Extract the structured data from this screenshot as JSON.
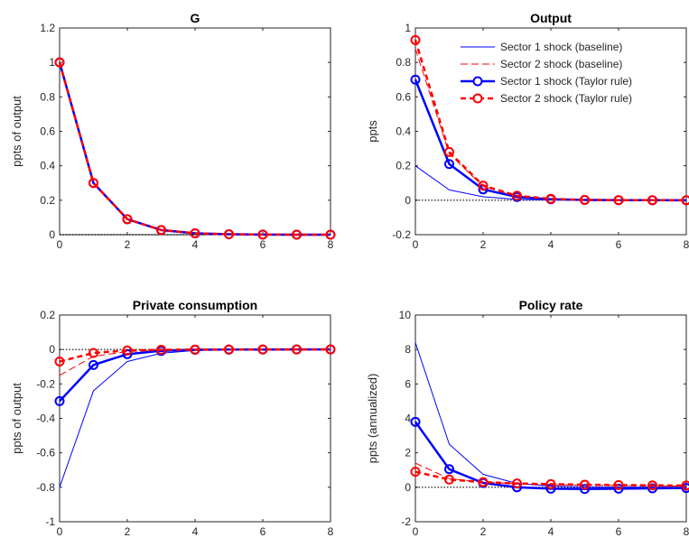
{
  "legend_placement": "top-right",
  "legend_panel": 1,
  "styles": {
    "s1_baseline": {
      "color": "#0000ff",
      "width": 1,
      "dash": "",
      "marker": false
    },
    "s2_baseline": {
      "color": "#ff0000",
      "width": 1,
      "dash": "8,4",
      "marker": false
    },
    "s1_taylor": {
      "color": "#0000ff",
      "width": 2.5,
      "dash": "",
      "marker": true
    },
    "s2_taylor": {
      "color": "#ff0000",
      "width": 2.5,
      "dash": "6,4",
      "marker": true
    }
  },
  "zero_line": {
    "color": "#000000",
    "dash": "1.5,2"
  },
  "chart_data": [
    {
      "type": "line",
      "title": "G",
      "xlabel": "",
      "ylabel": "ppts of output",
      "xlim": [
        0,
        8
      ],
      "ylim": [
        0,
        1.2
      ],
      "xticks": [
        "0",
        "2",
        "4",
        "6",
        "8"
      ],
      "yticks": [
        "0",
        "0.2",
        "0.4",
        "0.6",
        "0.8",
        "1",
        "1.2"
      ],
      "x": [
        0,
        1,
        2,
        3,
        4,
        5,
        6,
        7,
        8
      ],
      "series": [
        {
          "name": "Sector 1 shock (baseline)",
          "style": "s1_baseline",
          "values": [
            1,
            0.3,
            0.09,
            0.027,
            0.0081,
            0.0024,
            0.0007,
            0.0002,
            0.0001
          ]
        },
        {
          "name": "Sector 2 shock (baseline)",
          "style": "s2_baseline",
          "values": [
            1,
            0.3,
            0.09,
            0.027,
            0.0081,
            0.0024,
            0.0007,
            0.0002,
            0.0001
          ]
        },
        {
          "name": "Sector 1 shock (Taylor rule)",
          "style": "s1_taylor",
          "values": [
            1,
            0.3,
            0.09,
            0.027,
            0.0081,
            0.0024,
            0.0007,
            0.0002,
            0.0001
          ]
        },
        {
          "name": "Sector 2 shock (Taylor rule)",
          "style": "s2_taylor",
          "values": [
            1,
            0.3,
            0.09,
            0.027,
            0.0081,
            0.0024,
            0.0007,
            0.0002,
            0.0001
          ]
        }
      ]
    },
    {
      "type": "line",
      "title": "Output",
      "xlabel": "",
      "ylabel": "ppts",
      "xlim": [
        0,
        8
      ],
      "ylim": [
        -0.2,
        1
      ],
      "xticks": [
        "0",
        "2",
        "4",
        "6",
        "8"
      ],
      "yticks": [
        "-0.2",
        "0",
        "0.2",
        "0.4",
        "0.6",
        "0.8",
        "1"
      ],
      "x": [
        0,
        1,
        2,
        3,
        4,
        5,
        6,
        7,
        8
      ],
      "series": [
        {
          "name": "Sector 1 shock (baseline)",
          "style": "s1_baseline",
          "values": [
            0.2,
            0.06,
            0.02,
            0.005,
            0.002,
            0.0005,
            0.0001,
            0,
            0
          ]
        },
        {
          "name": "Sector 2 shock (baseline)",
          "style": "s2_baseline",
          "values": [
            0.88,
            0.27,
            0.08,
            0.025,
            0.007,
            0.002,
            0.0005,
            0.0001,
            0
          ]
        },
        {
          "name": "Sector 1 shock (Taylor rule)",
          "style": "s1_taylor",
          "values": [
            0.7,
            0.21,
            0.063,
            0.019,
            0.006,
            0.002,
            0.0005,
            0.0001,
            0
          ]
        },
        {
          "name": "Sector 2 shock (Taylor rule)",
          "style": "s2_taylor",
          "values": [
            0.93,
            0.28,
            0.085,
            0.026,
            0.008,
            0.002,
            0.0007,
            0.0002,
            0
          ]
        }
      ]
    },
    {
      "type": "line",
      "title": "Private consumption",
      "xlabel": "",
      "ylabel": "ppts of output",
      "xlim": [
        0,
        8
      ],
      "ylim": [
        -1,
        0.2
      ],
      "xticks": [
        "0",
        "2",
        "4",
        "6",
        "8"
      ],
      "yticks": [
        "-1",
        "-0.8",
        "-0.6",
        "-0.4",
        "-0.2",
        "0",
        "0.2"
      ],
      "x": [
        0,
        1,
        2,
        3,
        4,
        5,
        6,
        7,
        8
      ],
      "series": [
        {
          "name": "Sector 1 shock (baseline)",
          "style": "s1_baseline",
          "values": [
            -0.8,
            -0.24,
            -0.07,
            -0.022,
            -0.006,
            -0.002,
            -0.0005,
            -0.0001,
            0
          ]
        },
        {
          "name": "Sector 2 shock (baseline)",
          "style": "s2_baseline",
          "values": [
            -0.15,
            -0.04,
            -0.012,
            -0.004,
            -0.001,
            -0.0003,
            0,
            0,
            0
          ]
        },
        {
          "name": "Sector 1 shock (Taylor rule)",
          "style": "s1_taylor",
          "values": [
            -0.3,
            -0.09,
            -0.027,
            -0.008,
            -0.002,
            -0.0007,
            -0.0002,
            0,
            0
          ]
        },
        {
          "name": "Sector 2 shock (Taylor rule)",
          "style": "s2_taylor",
          "values": [
            -0.07,
            -0.02,
            -0.006,
            -0.002,
            -0.0005,
            -0.0001,
            0,
            0,
            0
          ]
        }
      ]
    },
    {
      "type": "line",
      "title": "Policy rate",
      "xlabel": "",
      "ylabel": "ppts (annualized)",
      "xlim": [
        0,
        8
      ],
      "ylim": [
        -2,
        10
      ],
      "xticks": [
        "0",
        "2",
        "4",
        "6",
        "8"
      ],
      "yticks": [
        "-2",
        "0",
        "2",
        "4",
        "6",
        "8",
        "10"
      ],
      "x": [
        0,
        1,
        2,
        3,
        4,
        5,
        6,
        7,
        8
      ],
      "series": [
        {
          "name": "Sector 1 shock (baseline)",
          "style": "s1_baseline",
          "values": [
            8.4,
            2.5,
            0.75,
            0.22,
            0.07,
            0.02,
            0.006,
            0.002,
            0
          ]
        },
        {
          "name": "Sector 2 shock (baseline)",
          "style": "s2_baseline",
          "values": [
            1.4,
            0.5,
            0.3,
            0.2,
            0.15,
            0.12,
            0.1,
            0.08,
            0.06
          ]
        },
        {
          "name": "Sector 1 shock (Taylor rule)",
          "style": "s1_taylor",
          "values": [
            3.8,
            1.05,
            0.25,
            0,
            -0.08,
            -0.1,
            -0.08,
            -0.06,
            -0.04
          ]
        },
        {
          "name": "Sector 2 shock (Taylor rule)",
          "style": "s2_taylor",
          "values": [
            0.9,
            0.45,
            0.3,
            0.22,
            0.18,
            0.15,
            0.13,
            0.11,
            0.1
          ]
        }
      ]
    }
  ]
}
